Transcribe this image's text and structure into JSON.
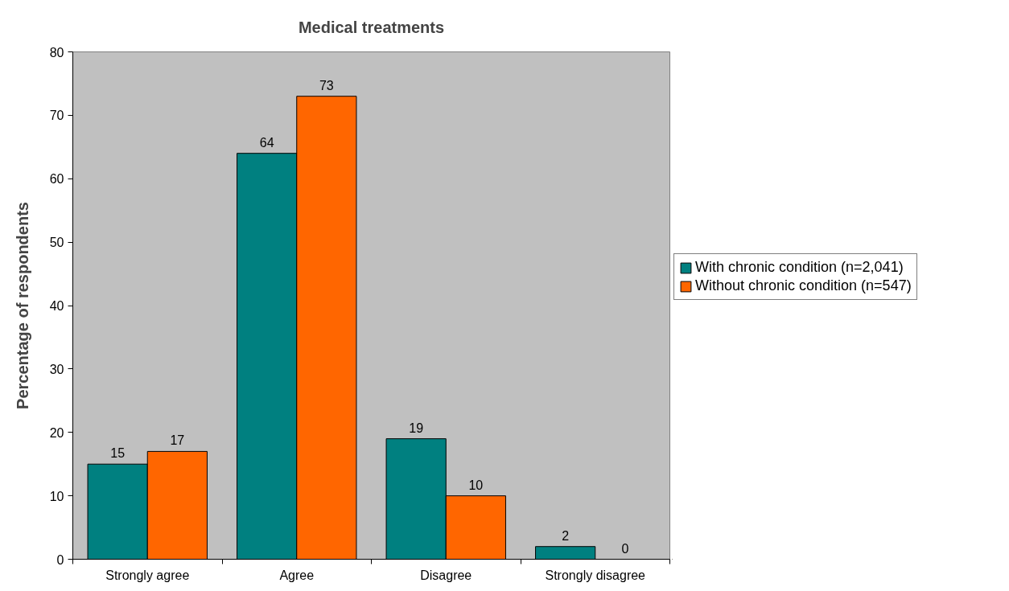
{
  "chart_data": {
    "type": "bar",
    "title": "Medical treatments",
    "ylabel": "Percentage of respondents",
    "categories": [
      "Strongly agree",
      "Agree",
      "Disagree",
      "Strongly disagree"
    ],
    "series": [
      {
        "name": "With chronic condition (n=2,041)",
        "color": "#008080",
        "values": [
          15,
          64,
          19,
          2
        ]
      },
      {
        "name": "Without chronic condition (n=547)",
        "color": "#ff6600",
        "values": [
          17,
          73,
          10,
          0
        ]
      }
    ],
    "ylim": [
      0,
      80
    ],
    "yticks": [
      0,
      10,
      20,
      30,
      40,
      50,
      60,
      70,
      80
    ],
    "grid": false,
    "legend": "right",
    "data_labels": true
  }
}
